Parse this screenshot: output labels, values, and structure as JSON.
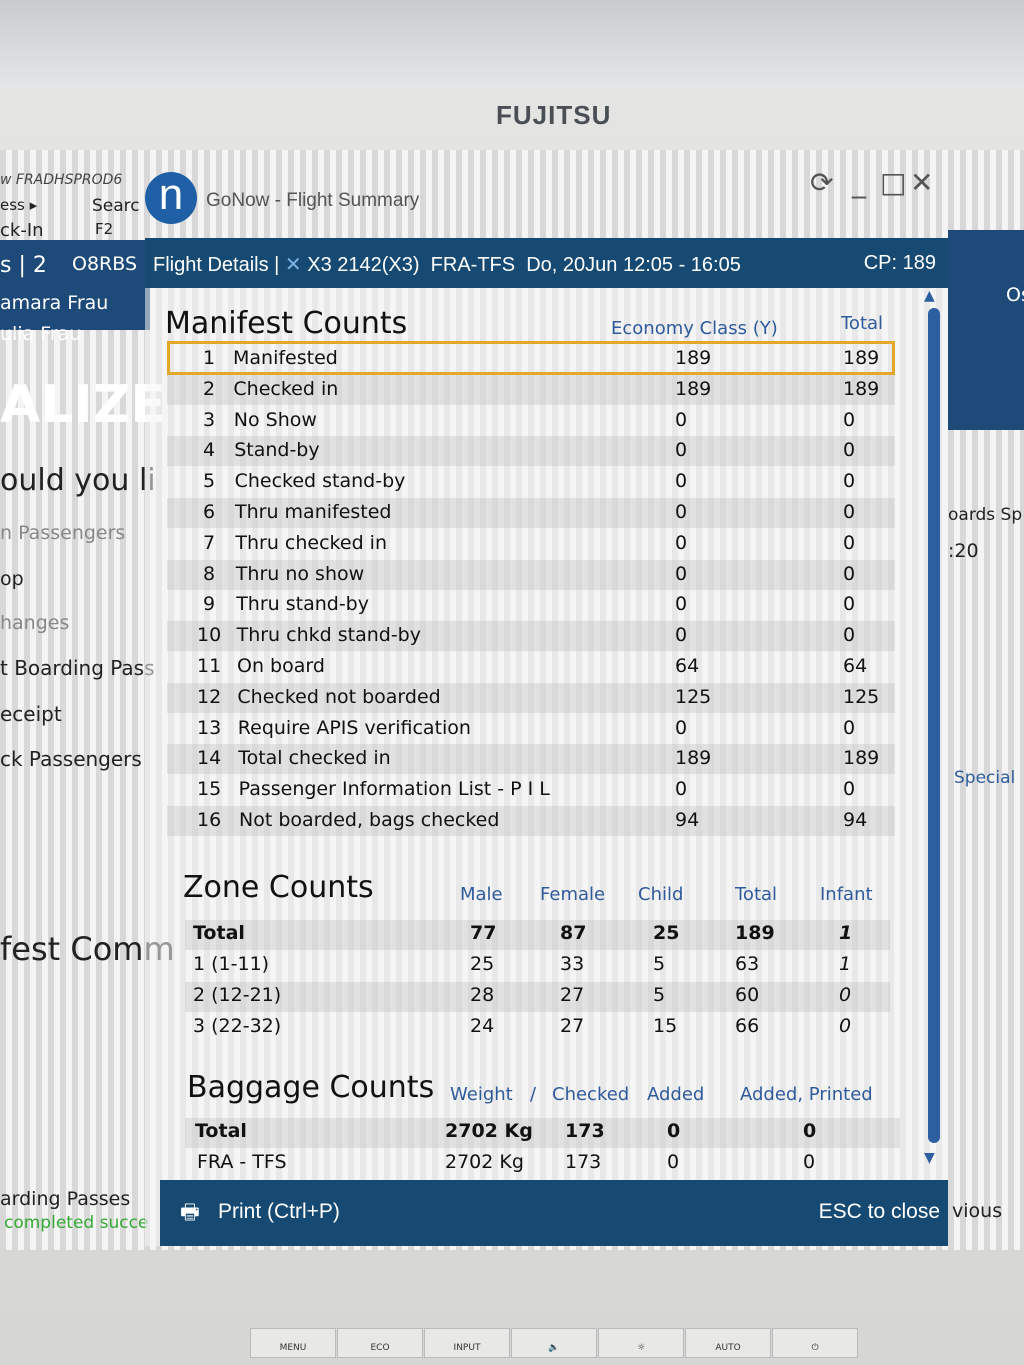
{
  "monitor": {
    "brand": "FUJITSU",
    "buttons": [
      "MENU",
      "ECO",
      "INPUT",
      "🔈",
      "☼",
      "AUTO",
      "⏻"
    ]
  },
  "background_app": {
    "left_texts": [
      "w  FRADHSPROD6",
      "ess ▸",
      "Searc",
      "ck-In",
      "F2",
      "s | 2",
      "O8RBS",
      "amara Frau",
      "ulia Frau",
      "ALIZE",
      "ould you li",
      "n Passengers",
      "op",
      "hanges",
      "t Boarding Pass",
      "eceipt",
      "ck Passengers",
      "fest Comm",
      "arding Passes",
      "completed succe"
    ],
    "right_texts": [
      "Os",
      "oards  Sp",
      ":20",
      "Special",
      "vious"
    ]
  },
  "window": {
    "title": "GoNow - Flight Summary",
    "logo": "n",
    "controls": [
      "⟳",
      "_",
      "□",
      "✕"
    ]
  },
  "header": {
    "label": "Flight Details |",
    "flight": "X3 2142(X3)",
    "route": "FRA-TFS",
    "date_time": "Do, 20Jun 12:05 - 16:05",
    "cp": "CP: 189",
    "icon": "airline-icon"
  },
  "manifest": {
    "title": "Manifest Counts",
    "columns": [
      "Economy Class (Y)",
      "Total"
    ],
    "rows": [
      {
        "n": "1",
        "label": "Manifested",
        "y": "189",
        "total": "189"
      },
      {
        "n": "2",
        "label": "Checked in",
        "y": "189",
        "total": "189"
      },
      {
        "n": "3",
        "label": "No Show",
        "y": "0",
        "total": "0"
      },
      {
        "n": "4",
        "label": "Stand-by",
        "y": "0",
        "total": "0"
      },
      {
        "n": "5",
        "label": "Checked stand-by",
        "y": "0",
        "total": "0"
      },
      {
        "n": "6",
        "label": "Thru manifested",
        "y": "0",
        "total": "0"
      },
      {
        "n": "7",
        "label": "Thru checked in",
        "y": "0",
        "total": "0"
      },
      {
        "n": "8",
        "label": "Thru no show",
        "y": "0",
        "total": "0"
      },
      {
        "n": "9",
        "label": "Thru stand-by",
        "y": "0",
        "total": "0"
      },
      {
        "n": "10",
        "label": "Thru chkd stand-by",
        "y": "0",
        "total": "0"
      },
      {
        "n": "11",
        "label": "On board",
        "y": "64",
        "total": "64"
      },
      {
        "n": "12",
        "label": "Checked not boarded",
        "y": "125",
        "total": "125"
      },
      {
        "n": "13",
        "label": "Require APIS verification",
        "y": "0",
        "total": "0"
      },
      {
        "n": "14",
        "label": "Total checked in",
        "y": "189",
        "total": "189"
      },
      {
        "n": "15",
        "label": "Passenger Information List - P I L",
        "y": "0",
        "total": "0"
      },
      {
        "n": "16",
        "label": "Not boarded, bags checked",
        "y": "94",
        "total": "94"
      }
    ]
  },
  "zones": {
    "title": "Zone Counts",
    "columns": [
      "Male",
      "Female",
      "Child",
      "Total",
      "Infant"
    ],
    "rows": [
      {
        "label": "Total",
        "values": [
          "77",
          "87",
          "25",
          "189",
          "1"
        ]
      },
      {
        "label": "1 (1-11)",
        "values": [
          "25",
          "33",
          "5",
          "63",
          "1"
        ]
      },
      {
        "label": "2 (12-21)",
        "values": [
          "28",
          "27",
          "5",
          "60",
          "0"
        ]
      },
      {
        "label": "3 (22-32)",
        "values": [
          "24",
          "27",
          "15",
          "66",
          "0"
        ]
      }
    ]
  },
  "baggage": {
    "title": "Baggage Counts",
    "columns": [
      "Weight",
      "/",
      "Checked",
      "Added",
      "Added, Printed"
    ],
    "rows": [
      {
        "label": "Total",
        "values": [
          "2702 Kg",
          "173",
          "0",
          "0"
        ]
      },
      {
        "label": "FRA - TFS",
        "values": [
          "2702 Kg",
          "173",
          "0",
          "0"
        ]
      }
    ]
  },
  "footer": {
    "print": "Print (Ctrl+P)",
    "close": "ESC to close"
  },
  "colors": {
    "header_bg": "#164a72",
    "highlight": "#e3a82a",
    "column_header": "#2f5b9c"
  }
}
